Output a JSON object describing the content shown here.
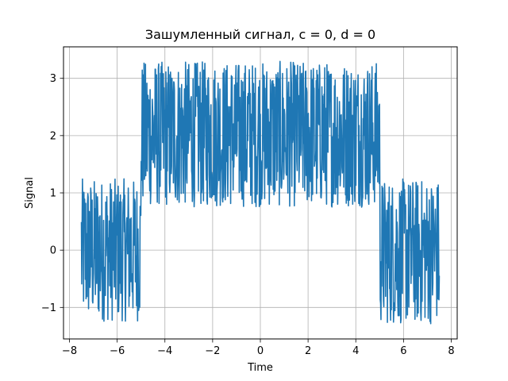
{
  "chart_data": {
    "type": "line",
    "title": "Зашумленный сигнал, c = 0, d = 0",
    "xlabel": "Time",
    "ylabel": "Signal",
    "xlim": [
      -8.25,
      8.25
    ],
    "ylim": [
      -1.55,
      3.55
    ],
    "xticks": [
      -8,
      -6,
      -4,
      -2,
      0,
      2,
      4,
      6,
      8
    ],
    "xtick_labels": [
      "−8",
      "−6",
      "−4",
      "−2",
      "0",
      "2",
      "4",
      "6",
      "8"
    ],
    "yticks": [
      -1,
      0,
      1,
      2,
      3
    ],
    "ytick_labels": [
      "−1",
      "0",
      "1",
      "2",
      "3"
    ],
    "grid": true,
    "legend": "none",
    "line_color": "#1f77b4",
    "series": [
      {
        "x_start": -7.5,
        "x_end": 7.5,
        "x_step": 0.015,
        "envelope": [
          {
            "x_from": -7.5,
            "x_to": -5.0,
            "low": -1.25,
            "high": 1.25
          },
          {
            "x_from": -5.0,
            "x_to": 5.0,
            "low": 0.75,
            "high": 3.3
          },
          {
            "x_from": 5.0,
            "x_to": 7.5,
            "low": -1.3,
            "high": 1.25
          }
        ]
      }
    ]
  }
}
